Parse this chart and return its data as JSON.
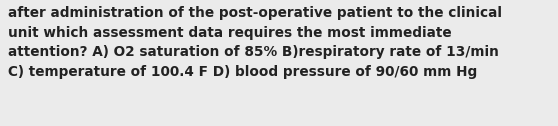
{
  "text": "after administration of the post-operative patient to the clinical\nunit which assessment data requires the most immediate\nattention? A) O2 saturation of 85% B)respiratory rate of 13/min\nC) temperature of 100.4 F D) blood pressure of 90/60 mm Hg",
  "background_color": "#ebebeb",
  "text_color": "#222222",
  "font_size": 9.8,
  "font_family": "DejaVu Sans",
  "font_weight": "bold",
  "linespacing": 1.5
}
